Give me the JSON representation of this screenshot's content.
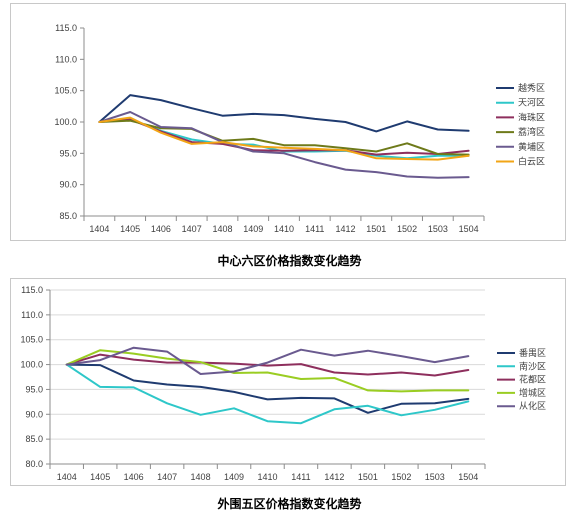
{
  "captions": [
    "中心六区价格指数变化趋势",
    "外围五区价格指数变化趋势"
  ],
  "chart_data": [
    {
      "type": "line",
      "title": "中心六区价格指数变化趋势",
      "xlabel": "",
      "ylabel": "",
      "categories": [
        "1404",
        "1405",
        "1406",
        "1407",
        "1408",
        "1409",
        "1410",
        "1411",
        "1412",
        "1501",
        "1502",
        "1503",
        "1504"
      ],
      "ylim": [
        85,
        115
      ],
      "yticks": [
        "115.0",
        "110.0",
        "105.0",
        "100.0",
        "95.0",
        "90.0",
        "85.0"
      ],
      "grid": false,
      "legend": "right",
      "series": [
        {
          "name": "越秀区",
          "color": "#1f3b70",
          "values": [
            100,
            104.3,
            103.5,
            102.2,
            101.0,
            101.3,
            101.1,
            100.5,
            100.0,
            98.5,
            100.1,
            98.8,
            98.6
          ]
        },
        {
          "name": "天河区",
          "color": "#2ec7c9",
          "values": [
            100,
            100.5,
            98.6,
            97.2,
            96.5,
            96.4,
            95.3,
            95.3,
            95.4,
            94.6,
            94.2,
            94.6,
            94.6
          ]
        },
        {
          "name": "海珠区",
          "color": "#8e2f5d",
          "values": [
            100,
            100.4,
            98.5,
            96.8,
            96.5,
            95.5,
            95.4,
            95.5,
            95.5,
            94.8,
            95.1,
            94.9,
            95.4
          ]
        },
        {
          "name": "荔湾区",
          "color": "#6e7a1a",
          "values": [
            100,
            100.2,
            99.0,
            98.9,
            97.0,
            97.3,
            96.3,
            96.3,
            95.8,
            95.3,
            96.6,
            94.9,
            94.8
          ]
        },
        {
          "name": "黄埔区",
          "color": "#6a5a8f",
          "values": [
            100,
            101.6,
            99.2,
            99.0,
            96.8,
            95.3,
            95.0,
            93.6,
            92.4,
            92.0,
            91.3,
            91.1,
            91.2
          ]
        },
        {
          "name": "白云区",
          "color": "#f2a516",
          "values": [
            100,
            100.7,
            98.3,
            96.5,
            96.8,
            96.1,
            95.9,
            95.7,
            95.5,
            94.2,
            94.1,
            94.0,
            94.6
          ]
        }
      ]
    },
    {
      "type": "line",
      "title": "外围五区价格指数变化趋势",
      "xlabel": "",
      "ylabel": "",
      "categories": [
        "1404",
        "1405",
        "1406",
        "1407",
        "1408",
        "1409",
        "1410",
        "1411",
        "1412",
        "1501",
        "1502",
        "1503",
        "1504"
      ],
      "ylim": [
        80,
        115
      ],
      "yticks": [
        "115.0",
        "110.0",
        "105.0",
        "100.0",
        "95.0",
        "90.0",
        "85.0",
        "80.0"
      ],
      "grid": true,
      "legend": "right",
      "series": [
        {
          "name": "番禺区",
          "color": "#1f3b70",
          "values": [
            100,
            99.9,
            96.8,
            96.0,
            95.5,
            94.5,
            93.0,
            93.3,
            93.2,
            90.3,
            92.1,
            92.2,
            93.1
          ]
        },
        {
          "name": "南沙区",
          "color": "#2ec7c9",
          "values": [
            100,
            95.5,
            95.4,
            92.2,
            89.9,
            91.2,
            88.6,
            88.2,
            91.0,
            91.7,
            89.8,
            90.9,
            92.6
          ]
        },
        {
          "name": "花都区",
          "color": "#8e2f5d",
          "values": [
            100,
            102.0,
            101.0,
            100.4,
            100.4,
            100.2,
            99.8,
            100.1,
            98.4,
            98.0,
            98.4,
            97.8,
            98.9
          ]
        },
        {
          "name": "增城区",
          "color": "#9acd22",
          "values": [
            100,
            102.9,
            102.2,
            101.2,
            100.5,
            98.3,
            98.4,
            97.1,
            97.3,
            94.8,
            94.6,
            94.8,
            94.8
          ]
        },
        {
          "name": "从化区",
          "color": "#6a5a8f",
          "values": [
            100,
            100.9,
            103.4,
            102.6,
            98.1,
            98.6,
            100.4,
            103.0,
            101.8,
            102.8,
            101.7,
            100.5,
            101.7
          ]
        }
      ]
    }
  ]
}
